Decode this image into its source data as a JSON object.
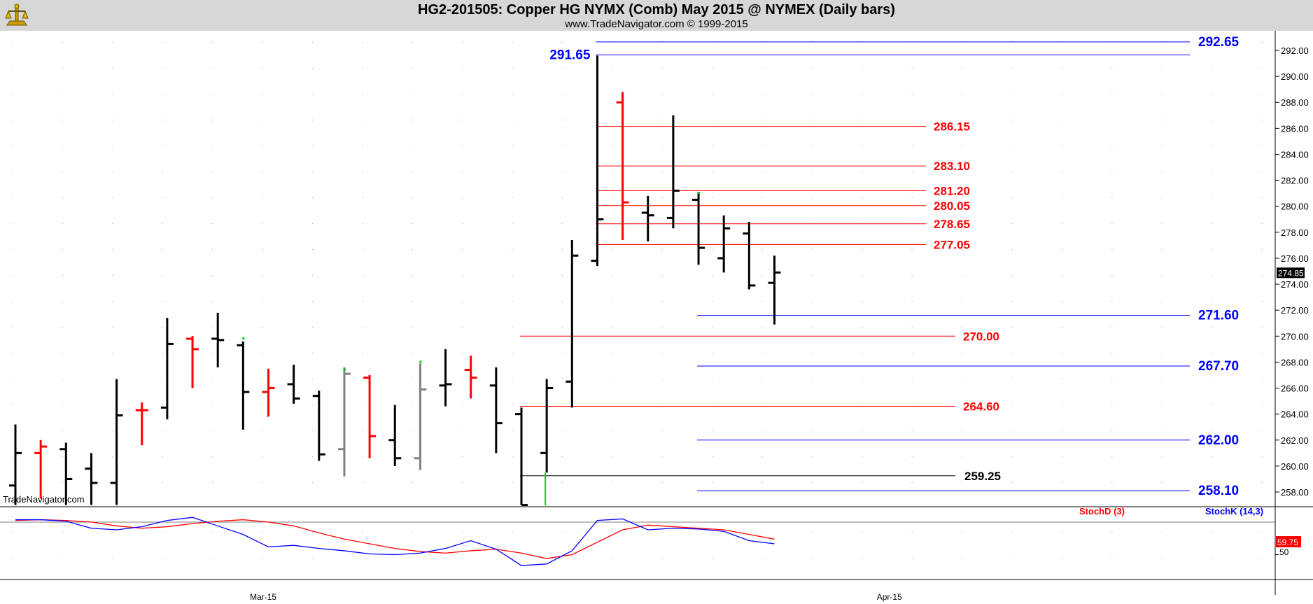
{
  "header": {
    "title": "HG2-201505:  Copper HG NYMX (Comb) May 2015 @ NYMEX  (Daily bars)",
    "subtitle": "www.TradeNavigator.com © 1999-2015",
    "watermark": "TradeNavigator.com"
  },
  "colors": {
    "header_bg": "#d7d7d7",
    "up_bar": "#000000",
    "down_bar": "#ff0000",
    "gray_bar": "#808080",
    "red_level": "#ff0000",
    "blue_level": "#0000ff",
    "black_level": "#000000",
    "stoch_d": "#ff0000",
    "stoch_k": "#0000ff"
  },
  "chart_data": [
    {
      "type": "ohlc",
      "y_ticks": [
        "258.00",
        "260.00",
        "262.00",
        "264.00",
        "266.00",
        "268.00",
        "270.00",
        "272.00",
        "274.00",
        "276.00",
        "278.00",
        "280.00",
        "282.00",
        "284.00",
        "286.00",
        "288.00",
        "290.00",
        "292.00"
      ],
      "x_ticks": [
        {
          "label": "Mar-15",
          "bar": 14
        },
        {
          "label": "Apr-15",
          "bar": 45
        }
      ],
      "last_price": "274.85",
      "bars": [
        {
          "o": 258.5,
          "h": 263.2,
          "l": 257.0,
          "c": 261.0,
          "col": "k"
        },
        {
          "o": 261.0,
          "h": 262.0,
          "l": 257.5,
          "c": 261.5,
          "col": "r"
        },
        {
          "o": 261.3,
          "h": 261.8,
          "l": 257.0,
          "c": 259.0,
          "col": "k"
        },
        {
          "o": 259.8,
          "h": 261.0,
          "l": 257.0,
          "c": 258.7,
          "col": "k"
        },
        {
          "o": 258.7,
          "h": 266.7,
          "l": 257.0,
          "c": 263.9,
          "col": "k"
        },
        {
          "o": 264.3,
          "h": 264.9,
          "l": 261.6,
          "c": 264.3,
          "col": "r"
        },
        {
          "o": 264.5,
          "h": 271.4,
          "l": 263.6,
          "c": 269.4,
          "col": "k"
        },
        {
          "o": 269.8,
          "h": 270.0,
          "l": 266.0,
          "c": 269.0,
          "col": "r"
        },
        {
          "o": 269.8,
          "h": 271.8,
          "l": 267.6,
          "c": 269.7,
          "col": "k"
        },
        {
          "o": 269.3,
          "h": 269.6,
          "l": 262.8,
          "c": 265.7,
          "col": "k"
        },
        {
          "o": 265.7,
          "h": 267.5,
          "l": 263.8,
          "c": 266.0,
          "col": "r"
        },
        {
          "o": 266.3,
          "h": 267.8,
          "l": 264.8,
          "c": 265.2,
          "col": "k"
        },
        {
          "o": 265.4,
          "h": 265.8,
          "l": 260.4,
          "c": 260.9,
          "col": "k"
        },
        {
          "o": 261.3,
          "h": 267.6,
          "l": 259.2,
          "c": 267.1,
          "col": "g"
        },
        {
          "o": 266.8,
          "h": 267.0,
          "l": 260.6,
          "c": 262.3,
          "col": "r"
        },
        {
          "o": 262.0,
          "h": 264.7,
          "l": 260.0,
          "c": 260.6,
          "col": "k"
        },
        {
          "o": 260.6,
          "h": 267.9,
          "l": 259.7,
          "c": 265.9,
          "col": "g"
        },
        {
          "o": 266.2,
          "h": 269.0,
          "l": 264.6,
          "c": 266.3,
          "col": "k"
        },
        {
          "o": 267.4,
          "h": 268.5,
          "l": 265.2,
          "c": 266.8,
          "col": "r"
        },
        {
          "o": 266.2,
          "h": 267.6,
          "l": 261.0,
          "c": 263.3,
          "col": "k"
        },
        {
          "o": 264.0,
          "h": 264.5,
          "l": 257.0,
          "c": 257.0,
          "col": "k"
        },
        {
          "o": 261.0,
          "h": 266.7,
          "l": 259.5,
          "c": 266.0,
          "col": "k"
        },
        {
          "o": 266.5,
          "h": 277.4,
          "l": 264.5,
          "c": 276.2,
          "col": "k"
        },
        {
          "o": 275.8,
          "h": 291.6,
          "l": 275.4,
          "c": 279.0,
          "col": "k"
        },
        {
          "o": 288.0,
          "h": 288.8,
          "l": 277.4,
          "c": 280.3,
          "col": "r"
        },
        {
          "o": 279.5,
          "h": 280.8,
          "l": 277.3,
          "c": 279.3,
          "col": "k"
        },
        {
          "o": 279.1,
          "h": 287.0,
          "l": 278.3,
          "c": 281.2,
          "col": "k"
        },
        {
          "o": 280.5,
          "h": 281.1,
          "l": 275.5,
          "c": 276.8,
          "col": "k"
        },
        {
          "o": 276.0,
          "h": 279.3,
          "l": 274.9,
          "c": 278.3,
          "col": "k"
        },
        {
          "o": 277.9,
          "h": 278.8,
          "l": 273.6,
          "c": 273.9,
          "col": "k"
        },
        {
          "o": 274.1,
          "h": 276.2,
          "l": 270.9,
          "c": 274.9,
          "col": "k"
        }
      ],
      "levels": [
        {
          "value": 292.65,
          "label": "292.65",
          "color": "blue",
          "from_bar": 23
        },
        {
          "value": 291.65,
          "label": "291.65",
          "color": "blue",
          "from_bar": 23,
          "label_side": "left"
        },
        {
          "value": 286.15,
          "label": "286.15",
          "color": "red",
          "from_bar": 23
        },
        {
          "value": 283.1,
          "label": "283.10",
          "color": "red",
          "from_bar": 23
        },
        {
          "value": 281.2,
          "label": "281.20",
          "color": "red",
          "from_bar": 23
        },
        {
          "value": 280.05,
          "label": "280.05",
          "color": "red",
          "from_bar": 23
        },
        {
          "value": 278.65,
          "label": "278.65",
          "color": "red",
          "from_bar": 23
        },
        {
          "value": 277.05,
          "label": "277.05",
          "color": "red",
          "from_bar": 23
        },
        {
          "value": 271.6,
          "label": "271.60",
          "color": "blue",
          "from_bar": 27
        },
        {
          "value": 270.0,
          "label": "270.00",
          "color": "red",
          "from_bar": 20
        },
        {
          "value": 267.7,
          "label": "267.70",
          "color": "blue",
          "from_bar": 27
        },
        {
          "value": 264.6,
          "label": "264.60",
          "color": "red",
          "from_bar": 20
        },
        {
          "value": 262.0,
          "label": "262.00",
          "color": "blue",
          "from_bar": 27
        },
        {
          "value": 259.25,
          "label": "259.25",
          "color": "black",
          "from_bar": 20
        },
        {
          "value": 258.1,
          "label": "258.10",
          "color": "blue",
          "from_bar": 27
        }
      ]
    },
    {
      "type": "line",
      "legend": [
        "StochD (3)",
        "StochK (14,3)"
      ],
      "y_tick": "50",
      "value_label": "59.75",
      "series": [
        {
          "name": "StochD (3)",
          "color": "red",
          "values": [
            94,
            95,
            94,
            92,
            87,
            84,
            86,
            90,
            93,
            95,
            92,
            87,
            78,
            70,
            64,
            58,
            54,
            52,
            55,
            57,
            52,
            45,
            50,
            66,
            82,
            88,
            86,
            84,
            82,
            76,
            70
          ]
        },
        {
          "name": "StochK (14,3)",
          "color": "blue",
          "values": [
            95,
            95,
            93,
            84,
            82,
            86,
            94,
            98,
            87,
            76,
            60,
            62,
            58,
            55,
            51,
            50,
            52,
            58,
            68,
            57,
            36,
            38,
            55,
            94,
            96,
            82,
            84,
            83,
            80,
            68,
            64
          ]
        }
      ]
    }
  ]
}
